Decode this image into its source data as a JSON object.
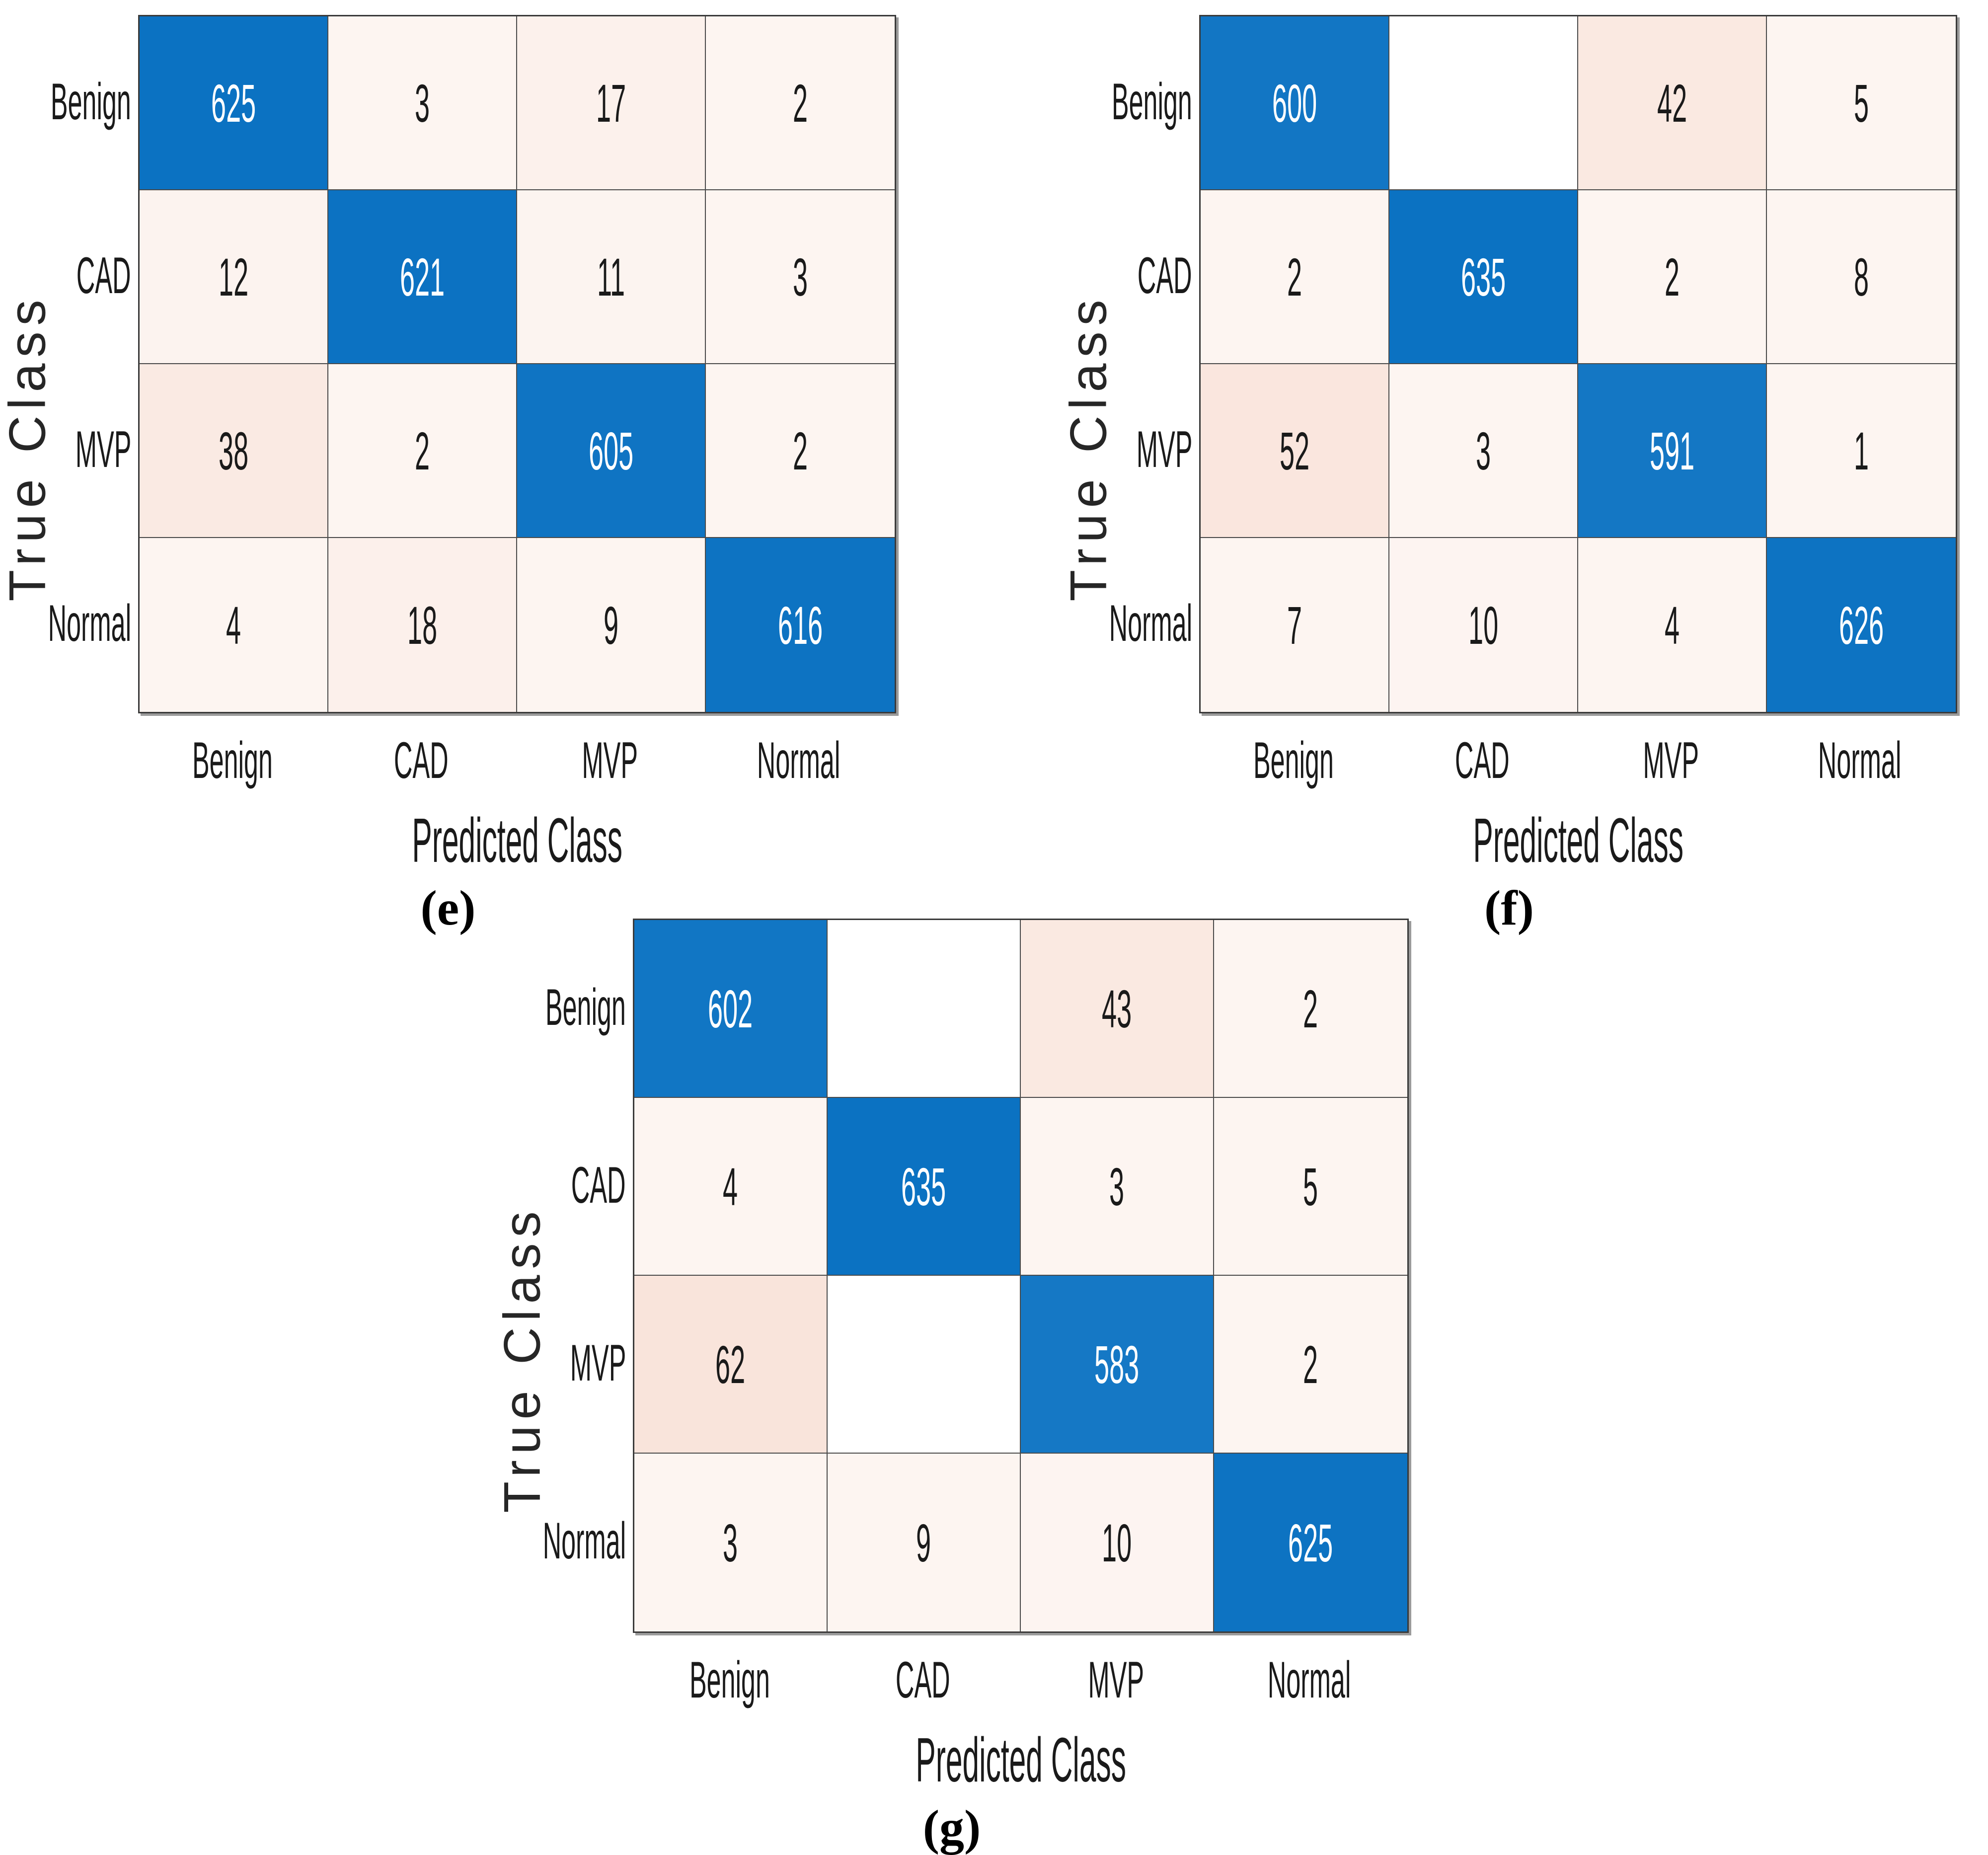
{
  "figure": {
    "true_axis_label": "True Class",
    "predicted_axis_label": "Predicted Class",
    "classes": [
      "Benign",
      "CAD",
      "MVP",
      "Normal"
    ]
  },
  "chart_data": [
    {
      "type": "heatmap",
      "panel_label": "(e)",
      "xlabel": "Predicted Class",
      "ylabel": "True Class",
      "x_categories": [
        "Benign",
        "CAD",
        "MVP",
        "Normal"
      ],
      "y_categories": [
        "Benign",
        "CAD",
        "MVP",
        "Normal"
      ],
      "matrix": [
        [
          625,
          3,
          17,
          2
        ],
        [
          12,
          621,
          11,
          3
        ],
        [
          38,
          2,
          605,
          2
        ],
        [
          4,
          18,
          9,
          616
        ]
      ]
    },
    {
      "type": "heatmap",
      "panel_label": "(f)",
      "xlabel": "Predicted Class",
      "ylabel": "True Class",
      "x_categories": [
        "Benign",
        "CAD",
        "MVP",
        "Normal"
      ],
      "y_categories": [
        "Benign",
        "CAD",
        "MVP",
        "Normal"
      ],
      "matrix": [
        [
          600,
          0,
          42,
          5
        ],
        [
          2,
          635,
          2,
          8
        ],
        [
          52,
          3,
          591,
          1
        ],
        [
          7,
          10,
          4,
          626
        ]
      ]
    },
    {
      "type": "heatmap",
      "panel_label": "(g)",
      "xlabel": "Predicted Class",
      "ylabel": "True Class",
      "x_categories": [
        "Benign",
        "CAD",
        "MVP",
        "Normal"
      ],
      "y_categories": [
        "Benign",
        "CAD",
        "MVP",
        "Normal"
      ],
      "matrix": [
        [
          602,
          0,
          43,
          2
        ],
        [
          4,
          635,
          3,
          5
        ],
        [
          62,
          0,
          583,
          2
        ],
        [
          3,
          9,
          10,
          625
        ]
      ]
    }
  ],
  "colors": {
    "diagonal_base": "#0b72c2",
    "off_diagonal_base": "#d95319",
    "zero_cell": "#ffffff",
    "grid_line": "#4a4a4a",
    "diagonal_text": "#ffffff",
    "off_diagonal_text": "#1a1a1a"
  }
}
